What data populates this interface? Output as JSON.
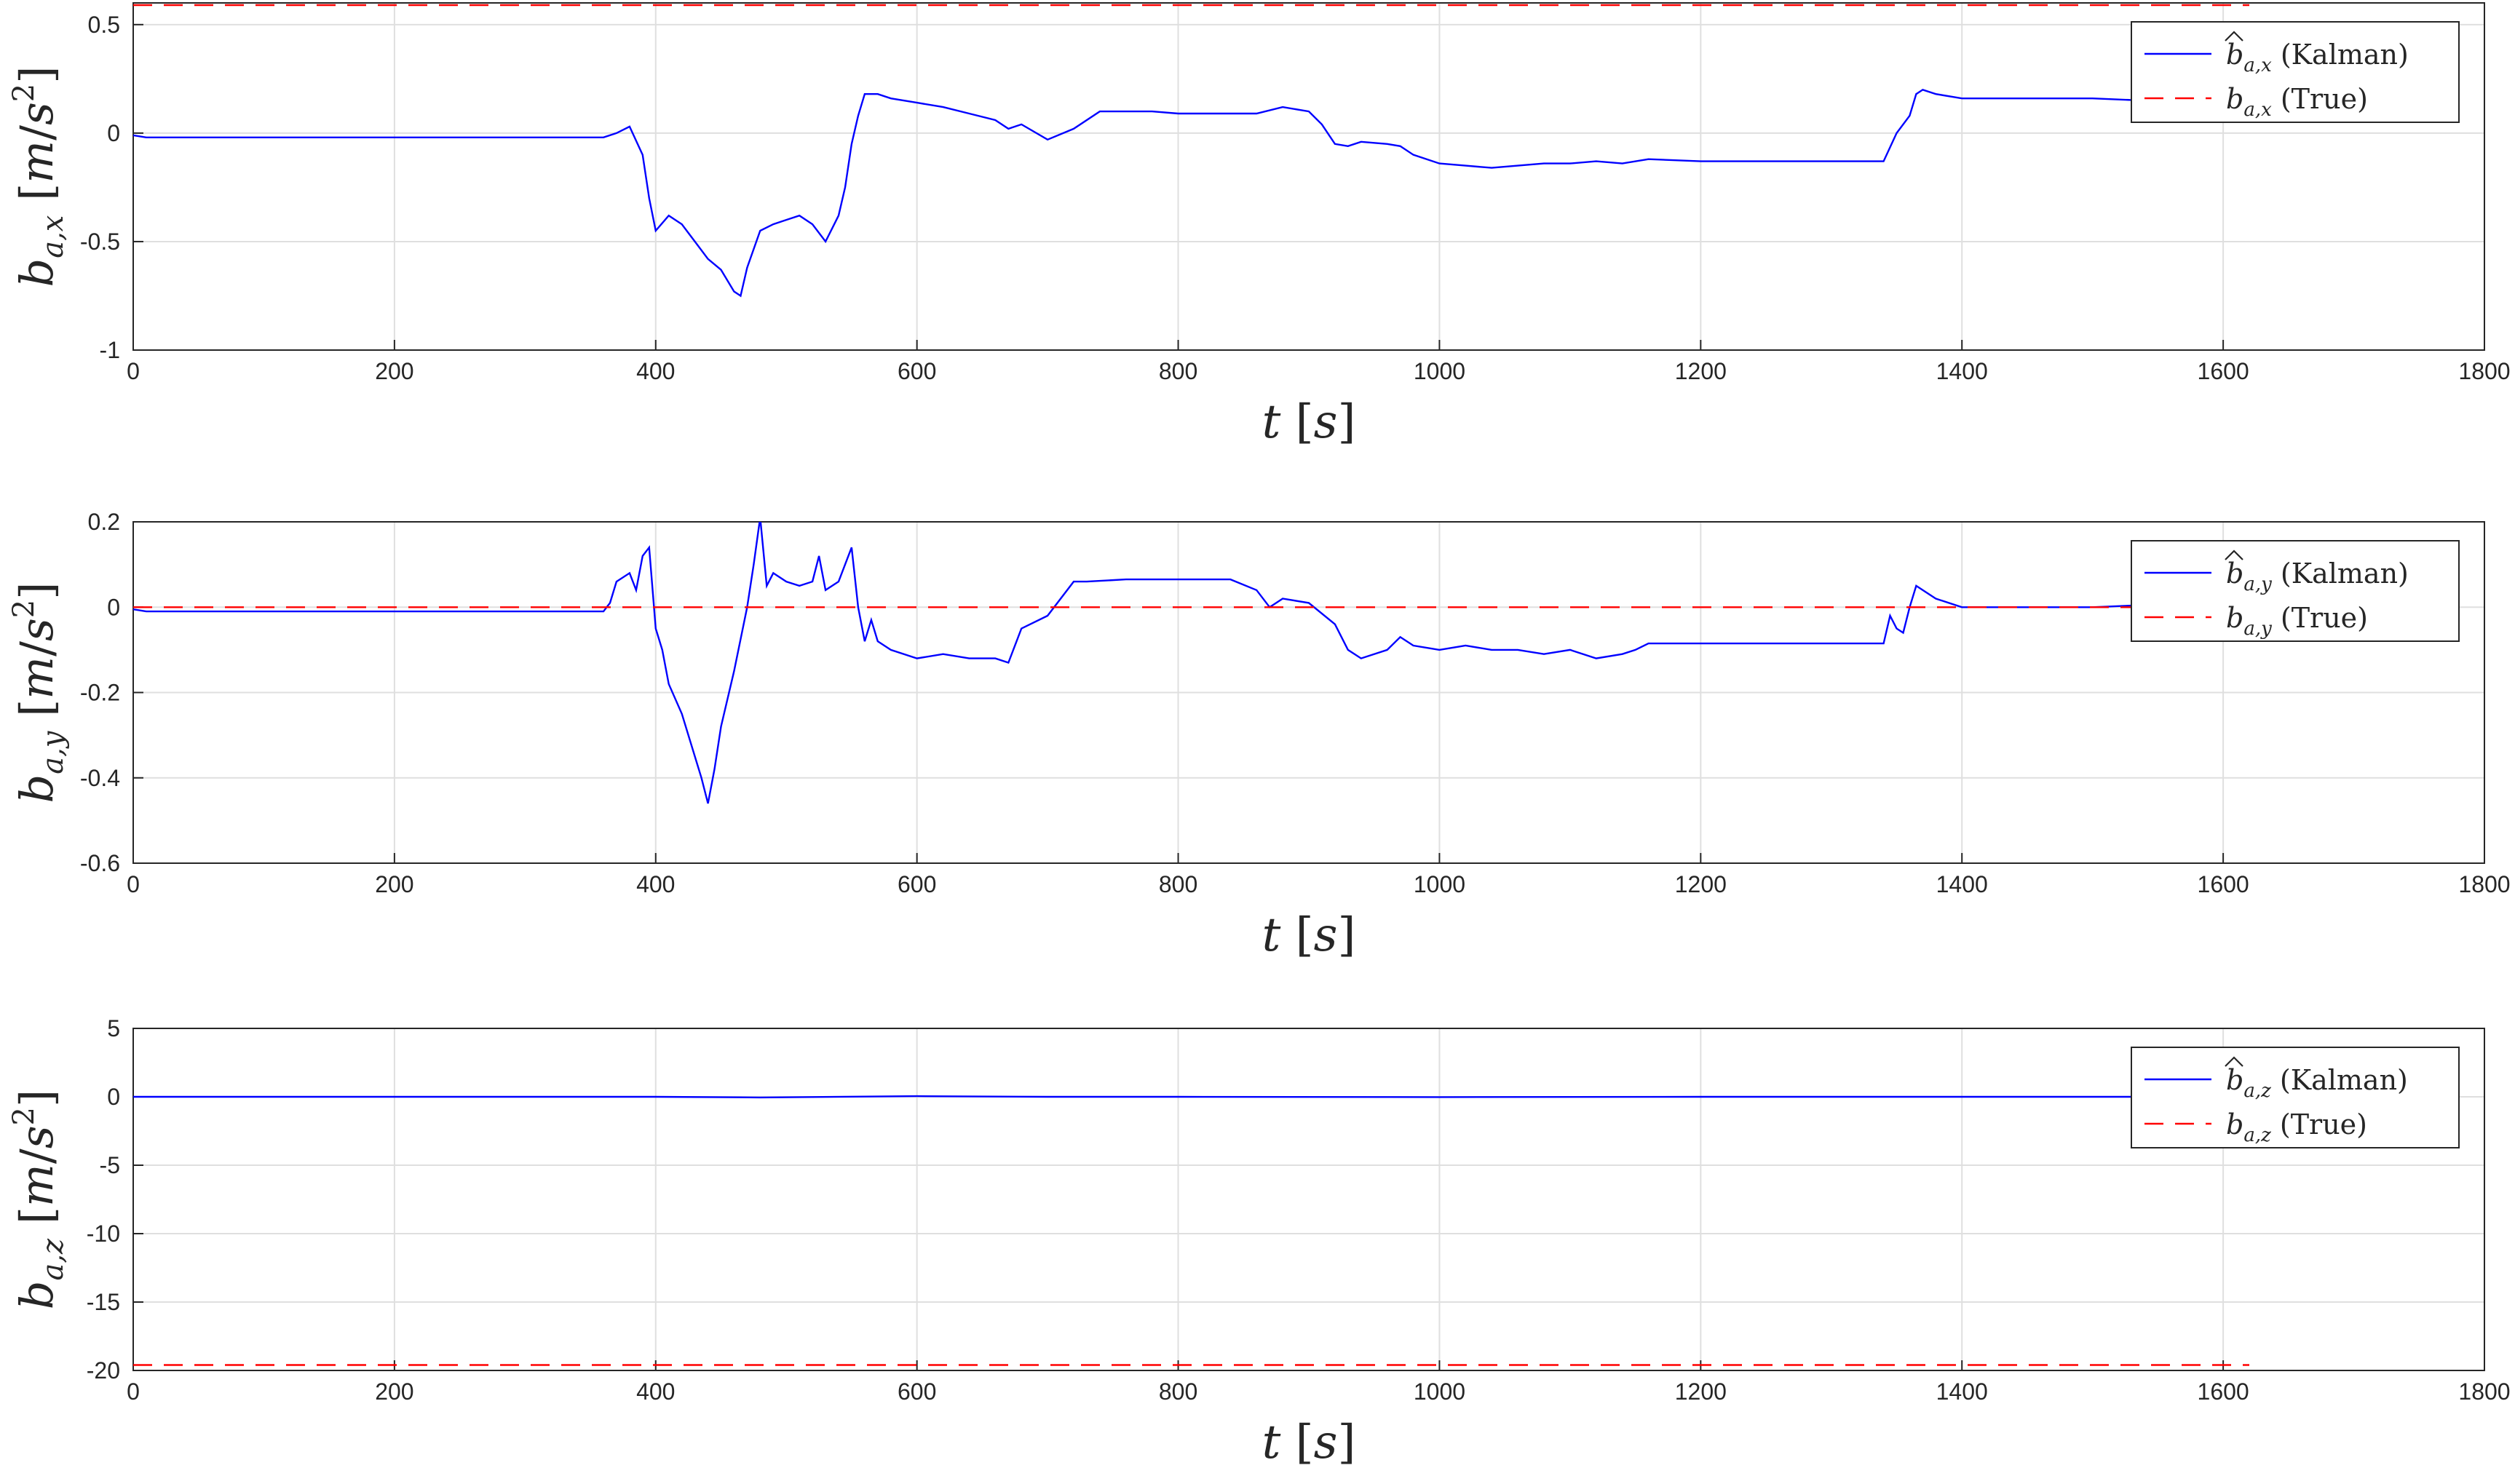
{
  "chart_data": [
    {
      "type": "line",
      "xlabel": "t [s]",
      "ylabel": "b_{a,x} [m/s^2]",
      "xlim": [
        0,
        1800
      ],
      "ylim": [
        -1,
        0.6
      ],
      "xticks": [
        0,
        200,
        400,
        600,
        800,
        1000,
        1200,
        1400,
        1600,
        1800
      ],
      "yticks": [
        -1,
        -0.5,
        0,
        0.5
      ],
      "ytick_labels": [
        "-1",
        "-0.5",
        "0",
        "0.5"
      ],
      "grid": true,
      "legend_position": "top-right",
      "legend": [
        "b̂_{a,x} (Kalman)",
        "b_{a,x} (True)"
      ],
      "series": [
        {
          "name": "b̂_{a,x} (Kalman)",
          "color": "#0000ff",
          "style": "solid",
          "x": [
            0,
            10,
            360,
            370,
            380,
            390,
            395,
            400,
            410,
            420,
            430,
            440,
            450,
            460,
            465,
            470,
            480,
            490,
            500,
            510,
            520,
            530,
            540,
            545,
            550,
            555,
            560,
            570,
            580,
            600,
            620,
            640,
            660,
            670,
            680,
            700,
            720,
            740,
            780,
            800,
            840,
            860,
            880,
            900,
            910,
            920,
            930,
            940,
            960,
            970,
            980,
            1000,
            1020,
            1040,
            1060,
            1080,
            1100,
            1120,
            1140,
            1160,
            1200,
            1300,
            1340,
            1350,
            1360,
            1365,
            1370,
            1380,
            1400,
            1450,
            1500,
            1540
          ],
          "y": [
            -0.01,
            -0.02,
            -0.02,
            0.0,
            0.03,
            -0.1,
            -0.3,
            -0.45,
            -0.38,
            -0.42,
            -0.5,
            -0.58,
            -0.63,
            -0.73,
            -0.75,
            -0.62,
            -0.45,
            -0.42,
            -0.4,
            -0.38,
            -0.42,
            -0.5,
            -0.38,
            -0.25,
            -0.05,
            0.08,
            0.18,
            0.18,
            0.16,
            0.14,
            0.12,
            0.09,
            0.06,
            0.02,
            0.04,
            -0.03,
            0.02,
            0.1,
            0.1,
            0.09,
            0.09,
            0.09,
            0.12,
            0.1,
            0.04,
            -0.05,
            -0.06,
            -0.04,
            -0.05,
            -0.06,
            -0.1,
            -0.14,
            -0.15,
            -0.16,
            -0.15,
            -0.14,
            -0.14,
            -0.13,
            -0.14,
            -0.12,
            -0.13,
            -0.13,
            -0.13,
            0.0,
            0.08,
            0.18,
            0.2,
            0.18,
            0.16,
            0.16,
            0.16,
            0.15
          ]
        },
        {
          "name": "b_{a,x} (True)",
          "color": "#ff0000",
          "style": "dashed",
          "x": [
            0,
            1620
          ],
          "y": [
            0.59,
            0.59
          ]
        }
      ]
    },
    {
      "type": "line",
      "xlabel": "t [s]",
      "ylabel": "b_{a,y} [m/s^2]",
      "xlim": [
        0,
        1800
      ],
      "ylim": [
        -0.6,
        0.2
      ],
      "xticks": [
        0,
        200,
        400,
        600,
        800,
        1000,
        1200,
        1400,
        1600,
        1800
      ],
      "yticks": [
        -0.6,
        -0.4,
        -0.2,
        0,
        0.2
      ],
      "ytick_labels": [
        "-0.6",
        "-0.4",
        "-0.2",
        "0",
        "0.2"
      ],
      "grid": true,
      "legend_position": "top-right",
      "legend": [
        "b̂_{a,y} (Kalman)",
        "b_{a,y} (True)"
      ],
      "series": [
        {
          "name": "b̂_{a,y} (Kalman)",
          "color": "#0000ff",
          "style": "solid",
          "x": [
            0,
            10,
            360,
            365,
            370,
            380,
            385,
            390,
            395,
            400,
            405,
            410,
            420,
            430,
            435,
            440,
            445,
            450,
            460,
            470,
            475,
            480,
            485,
            490,
            500,
            510,
            520,
            525,
            530,
            540,
            550,
            555,
            560,
            565,
            570,
            580,
            600,
            620,
            640,
            660,
            670,
            680,
            700,
            720,
            730,
            760,
            800,
            840,
            860,
            870,
            880,
            900,
            920,
            930,
            940,
            960,
            970,
            980,
            1000,
            1020,
            1040,
            1060,
            1080,
            1100,
            1120,
            1140,
            1150,
            1160,
            1200,
            1250,
            1300,
            1340,
            1345,
            1350,
            1355,
            1360,
            1365,
            1380,
            1400,
            1450,
            1500,
            1540
          ],
          "y": [
            -0.005,
            -0.01,
            -0.01,
            0.01,
            0.06,
            0.08,
            0.04,
            0.12,
            0.14,
            -0.05,
            -0.1,
            -0.18,
            -0.25,
            -0.35,
            -0.4,
            -0.46,
            -0.38,
            -0.28,
            -0.15,
            0.0,
            0.1,
            0.21,
            0.05,
            0.08,
            0.06,
            0.05,
            0.06,
            0.12,
            0.04,
            0.06,
            0.14,
            0.0,
            -0.08,
            -0.03,
            -0.08,
            -0.1,
            -0.12,
            -0.11,
            -0.12,
            -0.12,
            -0.13,
            -0.05,
            -0.02,
            0.06,
            0.06,
            0.065,
            0.065,
            0.065,
            0.04,
            0.0,
            0.02,
            0.01,
            -0.04,
            -0.1,
            -0.12,
            -0.1,
            -0.07,
            -0.09,
            -0.1,
            -0.09,
            -0.1,
            -0.1,
            -0.11,
            -0.1,
            -0.12,
            -0.11,
            -0.1,
            -0.085,
            -0.085,
            -0.085,
            -0.085,
            -0.085,
            -0.02,
            -0.05,
            -0.06,
            0.0,
            0.05,
            0.02,
            0.0,
            0.0,
            0.0,
            0.005
          ]
        },
        {
          "name": "b_{a,y} (True)",
          "color": "#ff0000",
          "style": "dashed",
          "x": [
            0,
            1620
          ],
          "y": [
            0.0,
            0.0
          ]
        }
      ]
    },
    {
      "type": "line",
      "xlabel": "t [s]",
      "ylabel": "b_{a,z} [m/s^2]",
      "xlim": [
        0,
        1800
      ],
      "ylim": [
        -20,
        5
      ],
      "xticks": [
        0,
        200,
        400,
        600,
        800,
        1000,
        1200,
        1400,
        1600,
        1800
      ],
      "yticks": [
        -20,
        -15,
        -10,
        -5,
        0,
        5
      ],
      "ytick_labels": [
        "-20",
        "-15",
        "-10",
        "-5",
        "0",
        "5"
      ],
      "grid": true,
      "legend_position": "top-right",
      "legend": [
        "b̂_{a,z} (Kalman)",
        "b_{a,z} (True)"
      ],
      "series": [
        {
          "name": "b̂_{a,z} (Kalman)",
          "color": "#0000ff",
          "style": "solid",
          "x": [
            0,
            200,
            400,
            480,
            600,
            700,
            800,
            1000,
            1200,
            1400,
            1540
          ],
          "y": [
            0.0,
            0.0,
            0.0,
            -0.05,
            0.05,
            0.0,
            0.0,
            -0.02,
            0.0,
            0.0,
            0.0
          ]
        },
        {
          "name": "b_{a,z} (True)",
          "color": "#ff0000",
          "style": "dashed",
          "x": [
            0,
            1620
          ],
          "y": [
            -19.6,
            -19.6
          ]
        }
      ]
    }
  ],
  "legend_text": {
    "kalman": "(Kalman)",
    "true": "(True)"
  },
  "axis_text": {
    "x_var": "t",
    "x_unit": "[s]",
    "y_var": "b",
    "y_unit_open": "[m/s",
    "y_unit_pow": "2",
    "y_unit_close": "]"
  }
}
